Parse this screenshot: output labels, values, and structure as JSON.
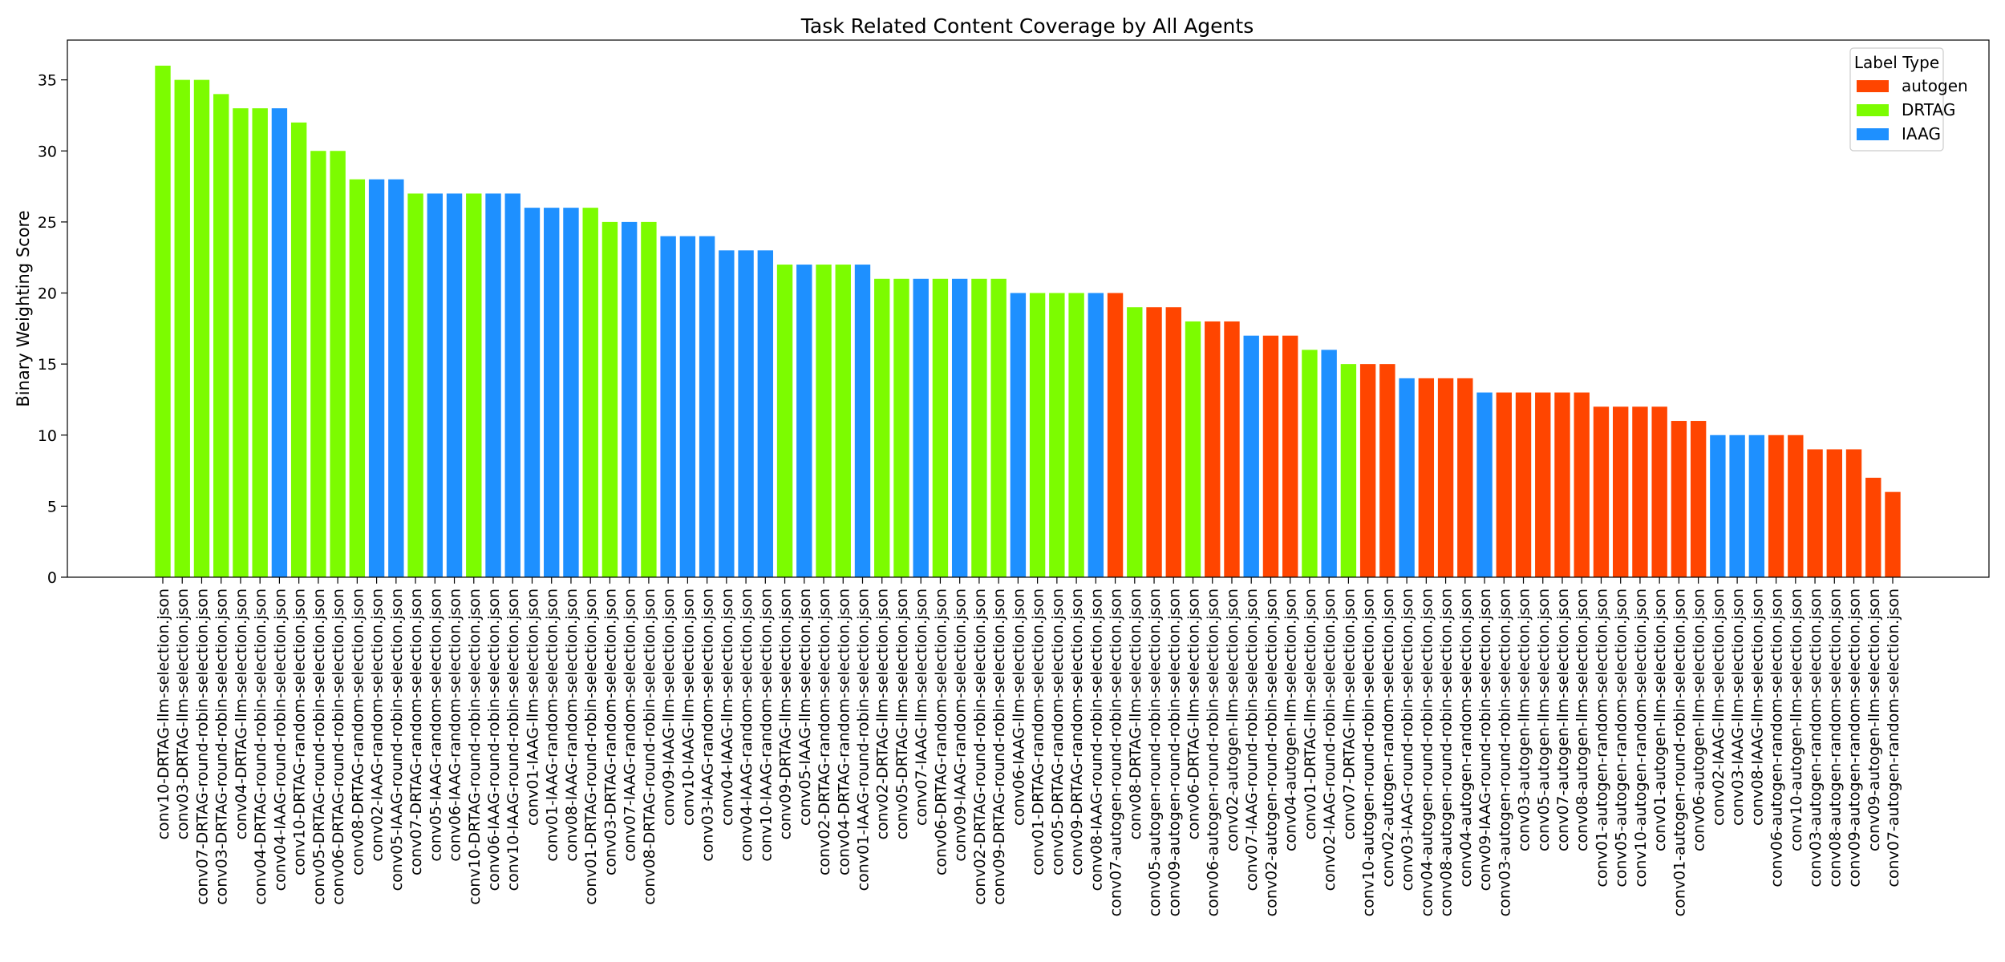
{
  "chart_data": {
    "type": "bar",
    "title": "Task Related Content Coverage by All Agents",
    "xlabel": "",
    "ylabel": "Binary Weighting Score",
    "ylim": [
      0,
      37.8
    ],
    "yticks": [
      0,
      5,
      10,
      15,
      20,
      25,
      30,
      35
    ],
    "grid": false,
    "legend": {
      "title": "Label Type",
      "placement": "top-right",
      "entries": [
        {
          "label": "autogen",
          "color": "#ff4500"
        },
        {
          "label": "DRTAG",
          "color": "#7cfc00"
        },
        {
          "label": "IAAG",
          "color": "#1e90ff"
        }
      ]
    },
    "colors": {
      "autogen": "#ff4500",
      "DRTAG": "#7cfc00",
      "IAAG": "#1e90ff"
    },
    "categories": [
      "conv10-DRTAG-llm-selection.json",
      "conv03-DRTAG-llm-selection.json",
      "conv07-DRTAG-round-robin-selection.json",
      "conv03-DRTAG-round-robin-selection.json",
      "conv04-DRTAG-llm-selection.json",
      "conv04-DRTAG-round-robin-selection.json",
      "conv04-IAAG-round-robin-selection.json",
      "conv10-DRTAG-random-selection.json",
      "conv05-DRTAG-round-robin-selection.json",
      "conv06-DRTAG-round-robin-selection.json",
      "conv08-DRTAG-random-selection.json",
      "conv02-IAAG-random-selection.json",
      "conv05-IAAG-round-robin-selection.json",
      "conv07-DRTAG-random-selection.json",
      "conv05-IAAG-random-selection.json",
      "conv06-IAAG-random-selection.json",
      "conv10-DRTAG-round-robin-selection.json",
      "conv06-IAAG-round-robin-selection.json",
      "conv10-IAAG-round-robin-selection.json",
      "conv01-IAAG-llm-selection.json",
      "conv01-IAAG-random-selection.json",
      "conv08-IAAG-random-selection.json",
      "conv01-DRTAG-round-robin-selection.json",
      "conv03-DRTAG-random-selection.json",
      "conv07-IAAG-random-selection.json",
      "conv08-DRTAG-round-robin-selection.json",
      "conv09-IAAG-llm-selection.json",
      "conv10-IAAG-llm-selection.json",
      "conv03-IAAG-random-selection.json",
      "conv04-IAAG-llm-selection.json",
      "conv04-IAAG-random-selection.json",
      "conv10-IAAG-random-selection.json",
      "conv09-DRTAG-llm-selection.json",
      "conv05-IAAG-llm-selection.json",
      "conv02-DRTAG-random-selection.json",
      "conv04-DRTAG-random-selection.json",
      "conv01-IAAG-round-robin-selection.json",
      "conv02-DRTAG-llm-selection.json",
      "conv05-DRTAG-llm-selection.json",
      "conv07-IAAG-llm-selection.json",
      "conv06-DRTAG-random-selection.json",
      "conv09-IAAG-random-selection.json",
      "conv02-DRTAG-round-robin-selection.json",
      "conv09-DRTAG-round-robin-selection.json",
      "conv06-IAAG-llm-selection.json",
      "conv01-DRTAG-random-selection.json",
      "conv05-DRTAG-random-selection.json",
      "conv09-DRTAG-random-selection.json",
      "conv08-IAAG-round-robin-selection.json",
      "conv07-autogen-round-robin-selection.json",
      "conv08-DRTAG-llm-selection.json",
      "conv05-autogen-round-robin-selection.json",
      "conv09-autogen-round-robin-selection.json",
      "conv06-DRTAG-llm-selection.json",
      "conv06-autogen-round-robin-selection.json",
      "conv02-autogen-llm-selection.json",
      "conv07-IAAG-round-robin-selection.json",
      "conv02-autogen-round-robin-selection.json",
      "conv04-autogen-llm-selection.json",
      "conv01-DRTAG-llm-selection.json",
      "conv02-IAAG-round-robin-selection.json",
      "conv07-DRTAG-llm-selection.json",
      "conv10-autogen-round-robin-selection.json",
      "conv02-autogen-random-selection.json",
      "conv03-IAAG-round-robin-selection.json",
      "conv04-autogen-round-robin-selection.json",
      "conv08-autogen-round-robin-selection.json",
      "conv04-autogen-random-selection.json",
      "conv09-IAAG-round-robin-selection.json",
      "conv03-autogen-round-robin-selection.json",
      "conv03-autogen-llm-selection.json",
      "conv05-autogen-llm-selection.json",
      "conv07-autogen-llm-selection.json",
      "conv08-autogen-llm-selection.json",
      "conv01-autogen-random-selection.json",
      "conv05-autogen-random-selection.json",
      "conv10-autogen-random-selection.json",
      "conv01-autogen-llm-selection.json",
      "conv01-autogen-round-robin-selection.json",
      "conv06-autogen-llm-selection.json",
      "conv02-IAAG-llm-selection.json",
      "conv03-IAAG-llm-selection.json",
      "conv08-IAAG-llm-selection.json",
      "conv06-autogen-random-selection.json",
      "conv10-autogen-llm-selection.json",
      "conv03-autogen-random-selection.json",
      "conv08-autogen-random-selection.json",
      "conv09-autogen-random-selection.json",
      "conv09-autogen-llm-selection.json",
      "conv07-autogen-random-selection.json"
    ],
    "values": [
      36,
      35,
      35,
      34,
      33,
      33,
      33,
      32,
      30,
      30,
      28,
      28,
      28,
      27,
      27,
      27,
      27,
      27,
      27,
      26,
      26,
      26,
      26,
      25,
      25,
      25,
      24,
      24,
      24,
      23,
      23,
      23,
      22,
      22,
      22,
      22,
      22,
      21,
      21,
      21,
      21,
      21,
      21,
      21,
      20,
      20,
      20,
      20,
      20,
      20,
      19,
      19,
      19,
      18,
      18,
      18,
      17,
      17,
      17,
      16,
      16,
      15,
      15,
      15,
      14,
      14,
      14,
      14,
      13,
      13,
      13,
      13,
      13,
      13,
      12,
      12,
      12,
      12,
      11,
      11,
      10,
      10,
      10,
      10,
      10,
      9,
      9,
      9,
      7,
      6
    ],
    "groups": [
      "DRTAG",
      "DRTAG",
      "DRTAG",
      "DRTAG",
      "DRTAG",
      "DRTAG",
      "IAAG",
      "DRTAG",
      "DRTAG",
      "DRTAG",
      "DRTAG",
      "IAAG",
      "IAAG",
      "DRTAG",
      "IAAG",
      "IAAG",
      "DRTAG",
      "IAAG",
      "IAAG",
      "IAAG",
      "IAAG",
      "IAAG",
      "DRTAG",
      "DRTAG",
      "IAAG",
      "DRTAG",
      "IAAG",
      "IAAG",
      "IAAG",
      "IAAG",
      "IAAG",
      "IAAG",
      "DRTAG",
      "IAAG",
      "DRTAG",
      "DRTAG",
      "IAAG",
      "DRTAG",
      "DRTAG",
      "IAAG",
      "DRTAG",
      "IAAG",
      "DRTAG",
      "DRTAG",
      "IAAG",
      "DRTAG",
      "DRTAG",
      "DRTAG",
      "IAAG",
      "autogen",
      "DRTAG",
      "autogen",
      "autogen",
      "DRTAG",
      "autogen",
      "autogen",
      "IAAG",
      "autogen",
      "autogen",
      "DRTAG",
      "IAAG",
      "DRTAG",
      "autogen",
      "autogen",
      "IAAG",
      "autogen",
      "autogen",
      "autogen",
      "IAAG",
      "autogen",
      "autogen",
      "autogen",
      "autogen",
      "autogen",
      "autogen",
      "autogen",
      "autogen",
      "autogen",
      "autogen",
      "autogen",
      "IAAG",
      "IAAG",
      "IAAG",
      "autogen",
      "autogen",
      "autogen",
      "autogen",
      "autogen",
      "autogen",
      "autogen"
    ]
  }
}
